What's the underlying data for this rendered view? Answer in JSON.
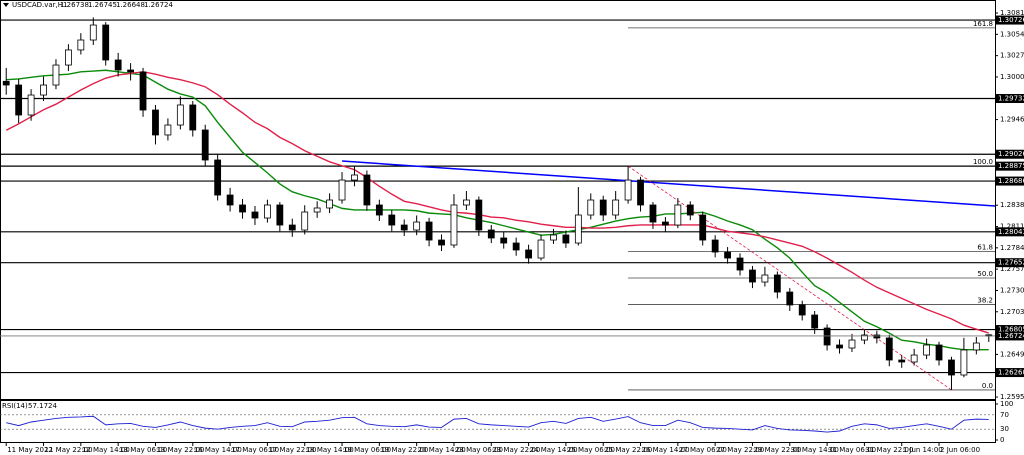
{
  "chart_data": {
    "type": "candlestick",
    "title": "USDCAD.var,H1",
    "categories": [
      "11 May 2022",
      null,
      null,
      "11 May 22:00",
      null,
      null,
      "12 May 14:00",
      null,
      null,
      "13 May 06:00",
      null,
      null,
      "13 May 22:00",
      null,
      null,
      "16 May 14:00",
      null,
      null,
      "17 May 06:00",
      null,
      null,
      "17 May 22:00",
      null,
      null,
      "18 May 14:00",
      null,
      null,
      "19 May 06:00",
      null,
      null,
      "19 May 22:00",
      null,
      null,
      "20 May 14:00",
      null,
      null,
      "23 May 06:00",
      null,
      null,
      "23 May 22:00",
      null,
      null,
      "24 May 14:00",
      null,
      null,
      "25 May 06:00",
      null,
      null,
      "25 May 22:00",
      null,
      null,
      "26 May 14:00",
      null,
      null,
      "27 May 06:00",
      null,
      null,
      "27 May 22:00",
      null,
      null,
      "29 May 22:00",
      null,
      null,
      "30 May 14:00",
      null,
      null,
      "31 May 06:00",
      null,
      null,
      "31 May 22:00",
      null,
      null,
      "1 Jun 14:00",
      null,
      null,
      "2 Jun 06:00",
      null,
      null,
      null,
      null
    ],
    "open": [
      1.2995,
      1.29903,
      1.29523,
      1.29776,
      1.29903,
      1.30156,
      1.30347,
      1.30473,
      1.30663,
      1.3022,
      1.30093,
      1.30068,
      1.29586,
      1.2927,
      1.29396,
      1.2965,
      1.29333,
      1.28953,
      1.28509,
      1.28383,
      1.28294,
      1.28218,
      1.28383,
      1.28129,
      1.28066,
      1.28294,
      1.28345,
      1.28446,
      1.28699,
      1.28763,
      1.28383,
      1.28256,
      1.28129,
      1.28066,
      1.28167,
      1.27939,
      1.27876,
      1.28383,
      1.28446,
      1.28066,
      1.27965,
      1.27901,
      1.27813,
      1.27711,
      1.27939,
      1.28003,
      1.27901,
      1.28256,
      1.28446,
      1.28256,
      1.28446,
      1.28699,
      1.28383,
      1.28167,
      1.28129,
      1.28383,
      1.28256,
      1.27939,
      1.27787,
      1.27711,
      1.27559,
      1.27407,
      1.27496,
      1.2728,
      1.27116,
      1.26989,
      1.26824,
      1.26609,
      1.26571,
      1.26672,
      1.26736,
      1.26698,
      1.26419,
      1.26394,
      1.26482,
      1.26609,
      1.26419,
      1.26229,
      1.26546,
      1.26738
    ],
    "high": [
      1.3012,
      1.2998,
      1.2985,
      1.3001,
      1.3023,
      1.3042,
      1.3056,
      1.3076,
      1.307,
      1.3031,
      1.3018,
      1.3012,
      1.2965,
      1.2948,
      1.2976,
      1.297,
      1.294,
      1.2902,
      1.286,
      1.2846,
      1.2837,
      1.2845,
      1.2842,
      1.2821,
      1.2838,
      1.2843,
      1.2853,
      1.288,
      1.2888,
      1.2882,
      1.2845,
      1.2832,
      1.282,
      1.2825,
      1.2822,
      1.2801,
      1.2852,
      1.2856,
      1.2849,
      1.2813,
      1.2804,
      1.2797,
      1.2788,
      1.2801,
      1.2808,
      1.2806,
      1.2861,
      1.2853,
      1.285,
      1.2856,
      1.28875,
      1.2874,
      1.2842,
      1.2823,
      1.2847,
      1.2843,
      1.283,
      1.28,
      1.2785,
      1.2777,
      1.2761,
      1.276,
      1.2754,
      1.2733,
      1.2717,
      1.2704,
      1.2687,
      1.2668,
      1.2675,
      1.26805,
      1.2679,
      1.2674,
      1.2648,
      1.2656,
      1.2669,
      1.2665,
      1.2646,
      1.267,
      1.2671,
      1.26745
    ],
    "low": [
      1.2978,
      1.2942,
      1.2945,
      1.297,
      1.2985,
      1.3008,
      1.3029,
      1.3041,
      1.3015,
      1.3001,
      1.2996,
      1.295,
      1.2915,
      1.292,
      1.2934,
      1.2925,
      1.2888,
      1.2844,
      1.283,
      1.2821,
      1.2813,
      1.2816,
      1.2805,
      1.2798,
      1.2801,
      1.2822,
      1.2828,
      1.284,
      1.2862,
      1.2831,
      1.2818,
      1.2805,
      1.2799,
      1.28,
      1.2786,
      1.278,
      1.2784,
      1.2832,
      1.2799,
      1.279,
      1.2783,
      1.2774,
      1.2764,
      1.2768,
      1.2789,
      1.2784,
      1.2787,
      1.282,
      1.2818,
      1.282,
      1.284,
      1.283,
      1.2808,
      1.2804,
      1.2809,
      1.2819,
      1.2787,
      1.2772,
      1.2764,
      1.2749,
      1.2733,
      1.2735,
      1.272,
      1.2704,
      1.2692,
      1.2675,
      1.2654,
      1.265,
      1.2652,
      1.2662,
      1.2663,
      1.2634,
      1.2632,
      1.2635,
      1.2643,
      1.2635,
      1.2604,
      1.262,
      1.2649,
      1.26648
    ],
    "close": [
      1.29903,
      1.29523,
      1.29776,
      1.29903,
      1.30156,
      1.30347,
      1.30473,
      1.30663,
      1.3022,
      1.30093,
      1.30068,
      1.29586,
      1.2927,
      1.29396,
      1.2965,
      1.29333,
      1.28953,
      1.28509,
      1.28383,
      1.28294,
      1.28218,
      1.28383,
      1.28129,
      1.28066,
      1.28294,
      1.28345,
      1.28446,
      1.28699,
      1.28763,
      1.28383,
      1.28256,
      1.28129,
      1.28066,
      1.28167,
      1.27939,
      1.27876,
      1.28383,
      1.28446,
      1.28066,
      1.27965,
      1.27901,
      1.27813,
      1.27711,
      1.27939,
      1.28003,
      1.27901,
      1.28256,
      1.28446,
      1.28256,
      1.28446,
      1.28699,
      1.28383,
      1.28167,
      1.28129,
      1.28383,
      1.28256,
      1.27939,
      1.27787,
      1.27711,
      1.27559,
      1.27407,
      1.27496,
      1.2728,
      1.27116,
      1.26989,
      1.26824,
      1.26609,
      1.26571,
      1.26672,
      1.26736,
      1.26698,
      1.26419,
      1.26394,
      1.26482,
      1.26609,
      1.26419,
      1.26229,
      1.26546,
      1.26634,
      1.26724
    ],
    "moving_averages": [
      {
        "color": "#0a8a0a",
        "values": [
          1.2997,
          1.2998,
          1.3,
          1.3002,
          1.3003,
          1.3004,
          1.3007,
          1.3008,
          1.3009,
          1.3007,
          1.3005,
          1.3003,
          1.2994,
          1.2985,
          1.2979,
          1.2975,
          1.2964,
          1.2943,
          1.2924,
          1.2905,
          1.2892,
          1.2879,
          1.2865,
          1.2855,
          1.285,
          1.2846,
          1.284,
          1.2834,
          1.2832,
          1.2832,
          1.2832,
          1.2832,
          1.2832,
          1.2831,
          1.2828,
          1.2827,
          1.2826,
          1.2822,
          1.2819,
          1.2816,
          1.2812,
          1.2808,
          1.2804,
          1.28,
          1.2801,
          1.2804,
          1.2807,
          1.281,
          1.2814,
          1.2818,
          1.2821,
          1.2823,
          1.2824,
          1.2827,
          1.2827,
          1.2828,
          1.2829,
          1.2824,
          1.2818,
          1.2813,
          1.2807,
          1.2795,
          1.2784,
          1.2771,
          1.2753,
          1.2736,
          1.2727,
          1.2715,
          1.2703,
          1.2691,
          1.2684,
          1.2676,
          1.2667,
          1.2665,
          1.2662,
          1.266,
          1.2657,
          1.2655,
          1.2655,
          1.2655
        ]
      },
      {
        "color": "#e0204a",
        "values": [
          1.2933,
          1.2941,
          1.295,
          1.2959,
          1.2966,
          1.2975,
          1.2984,
          1.2992,
          1.2999,
          1.3003,
          1.3005,
          1.3007,
          1.3004,
          1.3,
          1.2997,
          1.2993,
          1.2988,
          1.2978,
          1.2966,
          1.2955,
          1.2943,
          1.2935,
          1.2924,
          1.2916,
          1.2907,
          1.29,
          1.2893,
          1.2888,
          1.2883,
          1.2873,
          1.2862,
          1.2852,
          1.2843,
          1.284,
          1.2836,
          1.2832,
          1.2829,
          1.2828,
          1.2826,
          1.2823,
          1.2822,
          1.2819,
          1.2817,
          1.2814,
          1.2812,
          1.281,
          1.281,
          1.2809,
          1.2809,
          1.281,
          1.2812,
          1.2813,
          1.2813,
          1.2813,
          1.2813,
          1.2813,
          1.2813,
          1.2809,
          1.2805,
          1.2803,
          1.2801,
          1.2798,
          1.2794,
          1.279,
          1.2786,
          1.2779,
          1.2771,
          1.2762,
          1.2753,
          1.2743,
          1.2734,
          1.2727,
          1.272,
          1.2713,
          1.2706,
          1.27,
          1.2694,
          1.2686,
          1.2681,
          1.2676
        ]
      }
    ],
    "trendline": {
      "color": "#0000ff",
      "values": [
        1.2894,
        1.2837
      ]
    },
    "swing_line": {
      "color": "#e0204a",
      "values": [
        1.28875,
        1.2604
      ]
    },
    "levels": [
      1.30726,
      1.29732,
      1.29026,
      1.28875,
      1.28686,
      1.28043,
      1.27652,
      1.26805,
      {
        "value": 1.2626,
        "label": "1.26260"
      }
    ],
    "fibonacci": [
      {
        "level": 161.8,
        "price": 1.30627
      },
      {
        "level": {
          "value": 100,
          "label": "100.0"
        },
        "price": 1.28875
      },
      {
        "level": 61.8,
        "price": 1.27792
      },
      {
        "level": {
          "value": 50,
          "label": "50.0"
        },
        "price": 1.27458
      },
      {
        "level": 38.2,
        "price": 1.27123
      },
      {
        "level": {
          "value": 0,
          "label": "0.0"
        },
        "price": 1.2604
      }
    ],
    "ylim": [
      1.25925,
      1.30942
    ],
    "yticks": [
      1.30815,
      1.30545,
      1.30275,
      1.30005,
      1.29465,
      {
        "value": 1.2838,
        "label": "1.28380"
      },
      {
        "value": 1.2811,
        "label": "1.28110"
      },
      {
        "value": 1.2784,
        "label": "1.27840"
      },
      {
        "value": 1.2757,
        "label": "1.27570"
      },
      {
        "value": 1.273,
        "label": "1.27300"
      },
      {
        "value": 1.2703,
        "label": "1.27030"
      },
      {
        "value": 1.2649,
        "label": "1.26490"
      },
      {
        "value": 1.2595,
        "label": "1.25950"
      }
    ],
    "grid": false,
    "rsi": {
      "label": "RSI(14)",
      "color": "#1e1ed2",
      "ylim": [
        0,
        100
      ],
      "yticks": [
        0,
        30,
        70,
        100
      ],
      "values": [
        48,
        40,
        50,
        55,
        60,
        63,
        64,
        66,
        42,
        45,
        46,
        38,
        35,
        42,
        50,
        40,
        33,
        30,
        35,
        38,
        40,
        48,
        38,
        37,
        50,
        52,
        55,
        62,
        63,
        45,
        40,
        38,
        37,
        42,
        36,
        35,
        58,
        60,
        45,
        42,
        40,
        38,
        36,
        48,
        52,
        46,
        60,
        63,
        52,
        58,
        65,
        48,
        40,
        40,
        55,
        48,
        35,
        33,
        32,
        30,
        28,
        40,
        32,
        28,
        27,
        25,
        22,
        25,
        38,
        45,
        42,
        32,
        35,
        40,
        45,
        38,
        30,
        55,
        58,
        57.1724
      ]
    }
  }
}
